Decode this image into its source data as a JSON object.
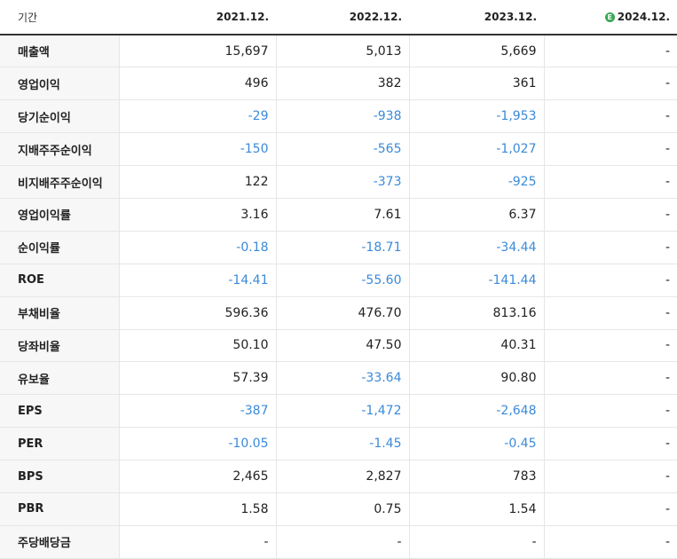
{
  "header": {
    "label": "기간",
    "periods": [
      "2021.12.",
      "2022.12.",
      "2023.12.",
      "2024.12."
    ],
    "estimate_icon_text": "E",
    "estimate_color": "#3aa756"
  },
  "colors": {
    "negative": "#3a8ad8",
    "text": "#222222"
  },
  "rows": [
    {
      "label": "매출액",
      "values": [
        "15,697",
        "5,013",
        "5,669",
        "-"
      ],
      "group_start": false
    },
    {
      "label": "영업이익",
      "values": [
        "496",
        "382",
        "361",
        "-"
      ],
      "group_start": false
    },
    {
      "label": "당기순이익",
      "values": [
        "-29",
        "-938",
        "-1,953",
        "-"
      ],
      "group_start": false
    },
    {
      "label": "지배주주순이익",
      "values": [
        "-150",
        "-565",
        "-1,027",
        "-"
      ],
      "group_start": false
    },
    {
      "label": "비지배주주순이익",
      "values": [
        "122",
        "-373",
        "-925",
        "-"
      ],
      "group_start": false
    },
    {
      "label": "영업이익률",
      "values": [
        "3.16",
        "7.61",
        "6.37",
        "-"
      ],
      "group_start": true
    },
    {
      "label": "순이익률",
      "values": [
        "-0.18",
        "-18.71",
        "-34.44",
        "-"
      ],
      "group_start": false
    },
    {
      "label": "ROE",
      "values": [
        "-14.41",
        "-55.60",
        "-141.44",
        "-"
      ],
      "group_start": false
    },
    {
      "label": "부채비율",
      "values": [
        "596.36",
        "476.70",
        "813.16",
        "-"
      ],
      "group_start": true
    },
    {
      "label": "당좌비율",
      "values": [
        "50.10",
        "47.50",
        "40.31",
        "-"
      ],
      "group_start": false
    },
    {
      "label": "유보율",
      "values": [
        "57.39",
        "-33.64",
        "90.80",
        "-"
      ],
      "group_start": false
    },
    {
      "label": "EPS",
      "values": [
        "-387",
        "-1,472",
        "-2,648",
        "-"
      ],
      "group_start": true
    },
    {
      "label": "PER",
      "values": [
        "-10.05",
        "-1.45",
        "-0.45",
        "-"
      ],
      "group_start": false
    },
    {
      "label": "BPS",
      "values": [
        "2,465",
        "2,827",
        "783",
        "-"
      ],
      "group_start": false
    },
    {
      "label": "PBR",
      "values": [
        "1.58",
        "0.75",
        "1.54",
        "-"
      ],
      "group_start": false
    },
    {
      "label": "주당배당금",
      "values": [
        "-",
        "-",
        "-",
        "-"
      ],
      "group_start": true
    }
  ]
}
